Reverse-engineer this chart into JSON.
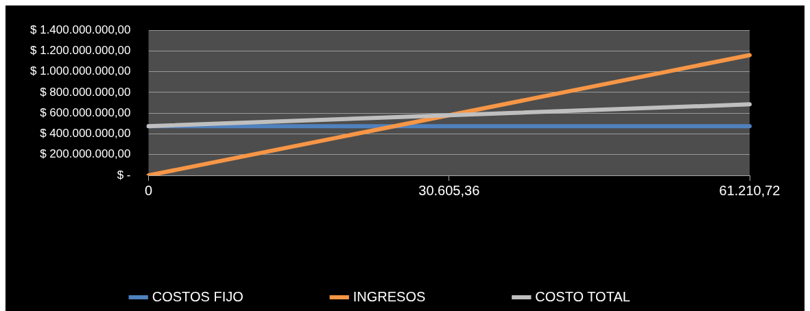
{
  "chart_data": {
    "type": "line",
    "categories": [
      "0",
      "30.605,36",
      "61.210,72"
    ],
    "series": [
      {
        "name": "COSTOS FIJO",
        "color": "#4f81bd",
        "values": [
          475000000,
          475000000,
          475000000
        ]
      },
      {
        "name": "INGRESOS",
        "color": "#f79646",
        "values": [
          0,
          580000000,
          1160000000
        ]
      },
      {
        "name": "COSTO TOTAL",
        "color": "#bfbfbf",
        "values": [
          475000000,
          580000000,
          685000000
        ]
      }
    ],
    "ylim": [
      0,
      1400000000
    ],
    "yticks": [
      {
        "value": 0,
        "label": "$ -"
      },
      {
        "value": 200000000,
        "label": "$ 200.000.000,00"
      },
      {
        "value": 400000000,
        "label": "$ 400.000.000,00"
      },
      {
        "value": 600000000,
        "label": "$ 600.000.000,00"
      },
      {
        "value": 800000000,
        "label": "$ 800.000.000,00"
      },
      {
        "value": 1000000000,
        "label": "$ 1.000.000.000,00"
      },
      {
        "value": 1200000000,
        "label": "$ 1.200.000.000,00"
      },
      {
        "value": 1400000000,
        "label": "$ 1.400.000.000,00"
      }
    ],
    "grid": "y",
    "legend": "bottom",
    "marker": "none",
    "line_style": "solid"
  }
}
